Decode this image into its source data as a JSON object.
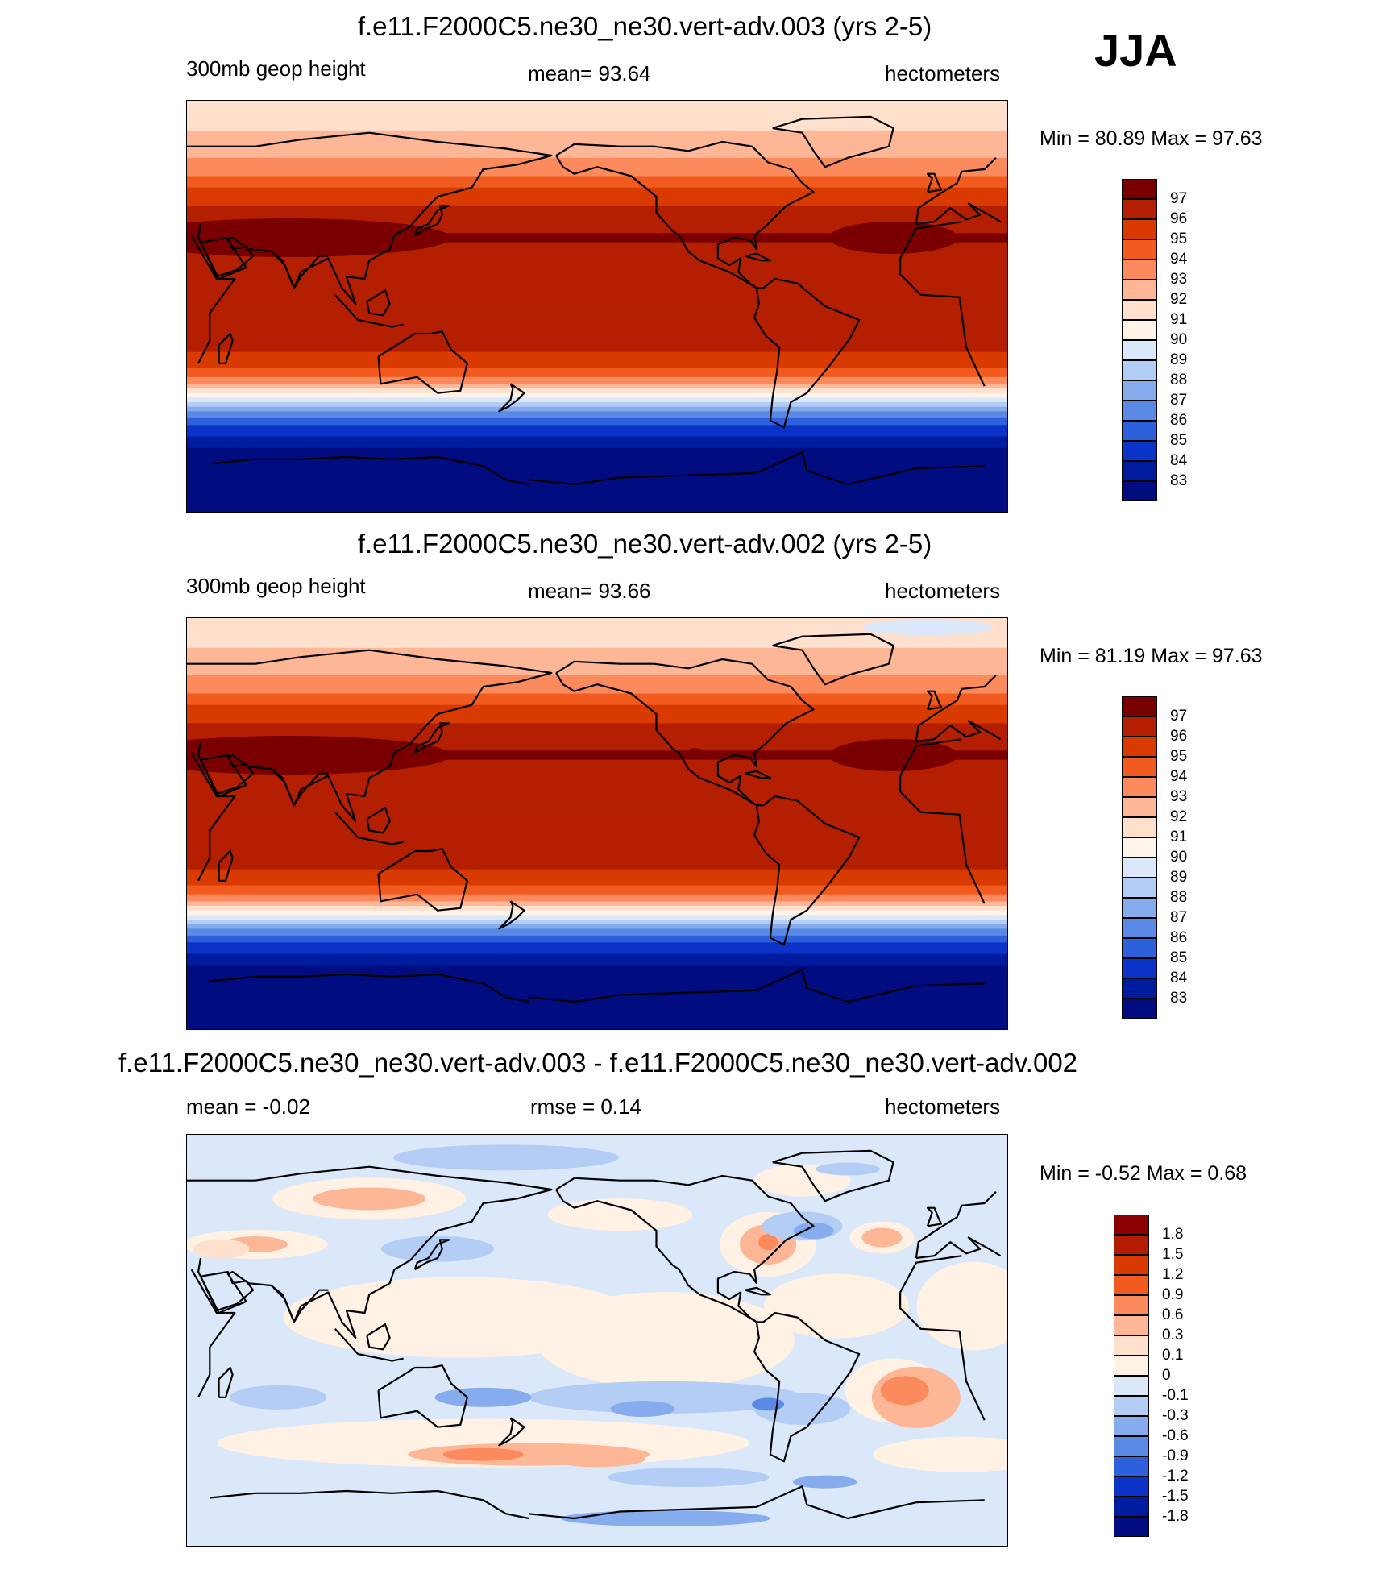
{
  "season": "JJA",
  "panels": [
    {
      "title": "f.e11.F2000C5.ne30_ne30.vert-adv.003 (yrs 2-5)",
      "left_label": "300mb geop height",
      "center_label": "mean=  93.64",
      "right_label": "hectometers",
      "minmax": "Min =  80.89 Max =  97.63",
      "stats": {
        "mean": 93.64,
        "min": 80.89,
        "max": 97.63
      }
    },
    {
      "title": "f.e11.F2000C5.ne30_ne30.vert-adv.002 (yrs 2-5)",
      "left_label": "300mb geop height",
      "center_label": "mean=  93.66",
      "right_label": "hectometers",
      "minmax": "Min =  81.19 Max =  97.63",
      "stats": {
        "mean": 93.66,
        "min": 81.19,
        "max": 97.63
      }
    },
    {
      "title": "f.e11.F2000C5.ne30_ne30.vert-adv.003 - f.e11.F2000C5.ne30_ne30.vert-adv.002",
      "left_label": "mean =  -0.02",
      "center_label": "rmse =   0.14",
      "right_label": "hectometers",
      "minmax": "Min =  -0.52 Max =   0.68",
      "stats": {
        "mean": -0.02,
        "rmse": 0.14,
        "min": -0.52,
        "max": 0.68
      }
    }
  ],
  "chart_data": [
    {
      "type": "heatmap",
      "title": "f.e11.F2000C5.ne30_ne30.vert-adv.003 (yrs 2-5)",
      "variable": "300mb geop height",
      "units": "hectometers",
      "colorbar": {
        "labels": [
          "97",
          "96",
          "95",
          "94",
          "93",
          "92",
          "91",
          "90",
          "89",
          "88",
          "87",
          "86",
          "85",
          "84",
          "83"
        ],
        "colors": [
          "#7a0000",
          "#b31f00",
          "#d83a00",
          "#f25b1f",
          "#fb8a5c",
          "#fdb797",
          "#fee0cc",
          "#fff4ea",
          "#dbe8fa",
          "#b4cdf5",
          "#87acee",
          "#5a89e6",
          "#2f60dc",
          "#0b33c7",
          "#001c9e",
          "#000c80"
        ]
      },
      "lat_profile": [
        {
          "lat": 90,
          "value": 91.5
        },
        {
          "lat": 80,
          "value": 91.8
        },
        {
          "lat": 70,
          "value": 92.5
        },
        {
          "lat": 60,
          "value": 93.5
        },
        {
          "lat": 50,
          "value": 95.3
        },
        {
          "lat": 40,
          "value": 96.5
        },
        {
          "lat": 30,
          "value": 97.1
        },
        {
          "lat": 20,
          "value": 96.6
        },
        {
          "lat": 0,
          "value": 96.3
        },
        {
          "lat": -20,
          "value": 96.0
        },
        {
          "lat": -30,
          "value": 94.5
        },
        {
          "lat": -35,
          "value": 92.5
        },
        {
          "lat": -40,
          "value": 90.0
        },
        {
          "lat": -45,
          "value": 87.5
        },
        {
          "lat": -50,
          "value": 85.5
        },
        {
          "lat": -60,
          "value": 83.3
        },
        {
          "lat": -70,
          "value": 82.0
        },
        {
          "lat": -90,
          "value": 81.0
        }
      ]
    },
    {
      "type": "heatmap",
      "title": "f.e11.F2000C5.ne30_ne30.vert-adv.002 (yrs 2-5)",
      "variable": "300mb geop height",
      "units": "hectometers",
      "colorbar": {
        "labels": [
          "97",
          "96",
          "95",
          "94",
          "93",
          "92",
          "91",
          "90",
          "89",
          "88",
          "87",
          "86",
          "85",
          "84",
          "83"
        ],
        "colors": [
          "#7a0000",
          "#b31f00",
          "#d83a00",
          "#f25b1f",
          "#fb8a5c",
          "#fdb797",
          "#fee0cc",
          "#fff4ea",
          "#dbe8fa",
          "#b4cdf5",
          "#87acee",
          "#5a89e6",
          "#2f60dc",
          "#0b33c7",
          "#001c9e",
          "#000c80"
        ]
      },
      "lat_profile": [
        {
          "lat": 90,
          "value": 91.3
        },
        {
          "lat": 80,
          "value": 91.8
        },
        {
          "lat": 70,
          "value": 92.5
        },
        {
          "lat": 60,
          "value": 93.5
        },
        {
          "lat": 50,
          "value": 95.3
        },
        {
          "lat": 40,
          "value": 96.5
        },
        {
          "lat": 30,
          "value": 97.1
        },
        {
          "lat": 20,
          "value": 96.6
        },
        {
          "lat": 0,
          "value": 96.3
        },
        {
          "lat": -20,
          "value": 96.0
        },
        {
          "lat": -30,
          "value": 94.5
        },
        {
          "lat": -35,
          "value": 92.5
        },
        {
          "lat": -40,
          "value": 90.0
        },
        {
          "lat": -45,
          "value": 87.5
        },
        {
          "lat": -50,
          "value": 85.5
        },
        {
          "lat": -60,
          "value": 83.3
        },
        {
          "lat": -70,
          "value": 82.0
        },
        {
          "lat": -90,
          "value": 81.2
        }
      ]
    },
    {
      "type": "heatmap",
      "title": "f.e11.F2000C5.ne30_ne30.vert-adv.003 - f.e11.F2000C5.ne30_ne30.vert-adv.002",
      "units": "hectometers",
      "colorbar": {
        "labels": [
          "1.8",
          "1.5",
          "1.2",
          "0.9",
          "0.6",
          "0.3",
          "0.1",
          "0",
          "-0.1",
          "-0.3",
          "-0.6",
          "-0.9",
          "-1.2",
          "-1.5",
          "-1.8"
        ],
        "colors": [
          "#8b0000",
          "#b41c00",
          "#d83a00",
          "#f25b1f",
          "#fb8a5c",
          "#fdb797",
          "#fee0cc",
          "#fff1e4",
          "#dbe8fa",
          "#b4cdf5",
          "#87acee",
          "#5a89e6",
          "#2f60dc",
          "#0b33c7",
          "#001c9e",
          "#000c80"
        ]
      }
    }
  ]
}
